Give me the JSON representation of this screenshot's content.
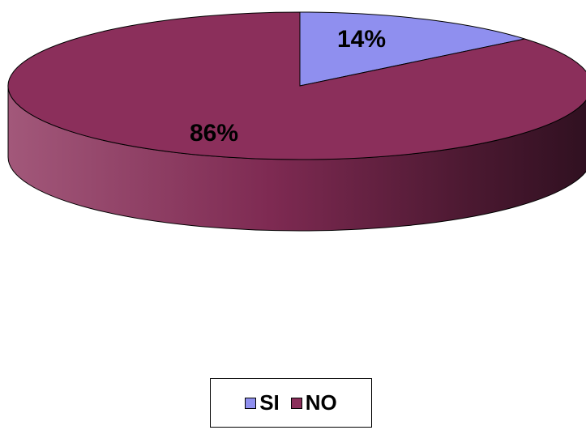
{
  "chart_data": {
    "type": "pie",
    "style": "3d",
    "title": "",
    "categories": [
      "SI",
      "NO"
    ],
    "values": [
      14,
      86
    ],
    "labels": [
      "14%",
      "86%"
    ],
    "colors": [
      "#8f8fef",
      "#8b2f5b"
    ],
    "legend": {
      "placement": "bottom",
      "entries": [
        "SI",
        "NO"
      ]
    }
  }
}
